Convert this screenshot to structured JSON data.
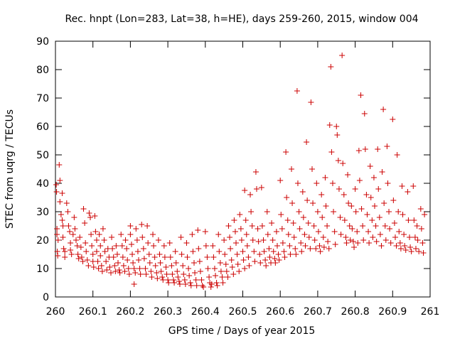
{
  "chart_data": {
    "type": "scatter",
    "title": "Rec. hnpt (Lon=283, Lat=38, h=HE), days 259-260, 2015, window 004",
    "xlabel": "GPS time / Days of year 2015",
    "ylabel": "STEC from uqrg / TECUs",
    "xlim": [
      260,
      261
    ],
    "ylim": [
      0,
      90
    ],
    "xticks": [
      "260",
      "260.1",
      "260.2",
      "260.3",
      "260.4",
      "260.5",
      "260.6",
      "260.7",
      "260.8",
      "260.9",
      "261"
    ],
    "yticks": [
      "0",
      "10",
      "20",
      "30",
      "40",
      "50",
      "60",
      "70",
      "80",
      "90"
    ],
    "grid": false,
    "legend": "none",
    "marker": "plus",
    "color": "#cc0000",
    "points": [
      [
        260.002,
        39.5
      ],
      [
        260.003,
        37
      ],
      [
        260.004,
        24
      ],
      [
        260.004,
        22
      ],
      [
        260.005,
        16
      ],
      [
        260.006,
        14.5
      ],
      [
        260.007,
        20
      ],
      [
        260.01,
        46.5
      ],
      [
        260.012,
        41
      ],
      [
        260.012,
        33.5
      ],
      [
        260.015,
        29
      ],
      [
        260.018,
        36.5
      ],
      [
        260.018,
        27
      ],
      [
        260.02,
        25
      ],
      [
        260.02,
        21
      ],
      [
        260.022,
        17
      ],
      [
        260.025,
        16
      ],
      [
        260.025,
        14
      ],
      [
        260.03,
        33
      ],
      [
        260.033,
        30
      ],
      [
        260.035,
        25
      ],
      [
        260.038,
        23
      ],
      [
        260.04,
        19
      ],
      [
        260.04,
        16.5
      ],
      [
        260.043,
        15
      ],
      [
        260.047,
        22
      ],
      [
        260.05,
        28
      ],
      [
        260.052,
        24
      ],
      [
        260.055,
        20
      ],
      [
        260.058,
        18
      ],
      [
        260.06,
        15
      ],
      [
        260.062,
        13.5
      ],
      [
        260.065,
        21
      ],
      [
        260.068,
        17.5
      ],
      [
        260.07,
        14
      ],
      [
        260.073,
        12.5
      ],
      [
        260.075,
        31
      ],
      [
        260.078,
        26
      ],
      [
        260.08,
        19
      ],
      [
        260.082,
        16
      ],
      [
        260.085,
        13
      ],
      [
        260.088,
        11
      ],
      [
        260.09,
        29.5
      ],
      [
        260.093,
        28
      ],
      [
        260.095,
        22
      ],
      [
        260.097,
        18
      ],
      [
        260.1,
        15
      ],
      [
        260.1,
        12.5
      ],
      [
        260.102,
        10.5
      ],
      [
        260.105,
        28.5
      ],
      [
        260.107,
        23
      ],
      [
        260.11,
        20
      ],
      [
        260.11,
        16
      ],
      [
        260.113,
        12.5
      ],
      [
        260.115,
        10
      ],
      [
        260.117,
        22
      ],
      [
        260.12,
        18
      ],
      [
        260.12,
        14.5
      ],
      [
        260.123,
        11
      ],
      [
        260.125,
        9
      ],
      [
        260.127,
        24
      ],
      [
        260.13,
        20
      ],
      [
        260.132,
        16
      ],
      [
        260.135,
        12.5
      ],
      [
        260.137,
        9.5
      ],
      [
        260.14,
        17
      ],
      [
        260.143,
        14
      ],
      [
        260.145,
        10.5
      ],
      [
        260.148,
        8.5
      ],
      [
        260.15,
        21
      ],
      [
        260.152,
        17
      ],
      [
        260.155,
        14
      ],
      [
        260.158,
        11
      ],
      [
        260.16,
        9
      ],
      [
        260.162,
        18
      ],
      [
        260.165,
        15
      ],
      [
        260.167,
        12
      ],
      [
        260.17,
        9.5
      ],
      [
        260.172,
        8.5
      ],
      [
        260.175,
        22
      ],
      [
        260.178,
        18
      ],
      [
        260.18,
        14
      ],
      [
        260.182,
        11
      ],
      [
        260.185,
        9
      ],
      [
        260.187,
        20
      ],
      [
        260.19,
        17
      ],
      [
        260.192,
        13
      ],
      [
        260.195,
        10
      ],
      [
        260.197,
        8
      ],
      [
        260.2,
        25
      ],
      [
        260.2,
        22
      ],
      [
        260.203,
        18.5
      ],
      [
        260.205,
        15
      ],
      [
        260.207,
        12
      ],
      [
        260.21,
        10
      ],
      [
        260.21,
        4.5
      ],
      [
        260.213,
        8.5
      ],
      [
        260.215,
        24
      ],
      [
        260.218,
        20
      ],
      [
        260.22,
        16
      ],
      [
        260.222,
        13
      ],
      [
        260.225,
        10
      ],
      [
        260.227,
        8
      ],
      [
        260.23,
        25.5
      ],
      [
        260.232,
        21
      ],
      [
        260.235,
        17
      ],
      [
        260.237,
        13.5
      ],
      [
        260.24,
        10
      ],
      [
        260.242,
        8
      ],
      [
        260.245,
        25
      ],
      [
        260.247,
        19
      ],
      [
        260.25,
        15
      ],
      [
        260.252,
        12
      ],
      [
        260.255,
        9
      ],
      [
        260.257,
        7
      ],
      [
        260.26,
        22
      ],
      [
        260.262,
        18
      ],
      [
        260.265,
        14
      ],
      [
        260.267,
        11
      ],
      [
        260.27,
        8.5
      ],
      [
        260.272,
        6.5
      ],
      [
        260.275,
        20
      ],
      [
        260.278,
        15
      ],
      [
        260.28,
        12
      ],
      [
        260.282,
        9
      ],
      [
        260.285,
        7
      ],
      [
        260.287,
        6
      ],
      [
        260.29,
        18
      ],
      [
        260.292,
        14
      ],
      [
        260.295,
        10.5
      ],
      [
        260.297,
        8
      ],
      [
        260.3,
        6
      ],
      [
        260.302,
        5
      ],
      [
        260.305,
        19
      ],
      [
        260.307,
        14
      ],
      [
        260.31,
        11
      ],
      [
        260.312,
        8
      ],
      [
        260.315,
        6
      ],
      [
        260.317,
        5
      ],
      [
        260.32,
        16
      ],
      [
        260.322,
        12
      ],
      [
        260.325,
        9
      ],
      [
        260.327,
        7
      ],
      [
        260.33,
        5.5
      ],
      [
        260.332,
        4.5
      ],
      [
        260.335,
        21
      ],
      [
        260.337,
        15
      ],
      [
        260.34,
        11
      ],
      [
        260.342,
        8
      ],
      [
        260.345,
        6
      ],
      [
        260.347,
        4.5
      ],
      [
        260.35,
        19
      ],
      [
        260.352,
        14
      ],
      [
        260.355,
        10
      ],
      [
        260.357,
        7.5
      ],
      [
        260.36,
        5
      ],
      [
        260.362,
        4
      ],
      [
        260.365,
        22
      ],
      [
        260.367,
        16
      ],
      [
        260.37,
        12
      ],
      [
        260.372,
        8.5
      ],
      [
        260.375,
        6
      ],
      [
        260.377,
        4
      ],
      [
        260.38,
        23.5
      ],
      [
        260.382,
        17
      ],
      [
        260.385,
        12.5
      ],
      [
        260.387,
        9
      ],
      [
        260.39,
        6
      ],
      [
        260.392,
        4
      ],
      [
        260.395,
        3.5
      ],
      [
        260.4,
        23
      ],
      [
        260.402,
        18
      ],
      [
        260.405,
        14
      ],
      [
        260.407,
        10
      ],
      [
        260.41,
        7
      ],
      [
        260.412,
        5
      ],
      [
        260.415,
        3.5
      ],
      [
        260.417,
        4.5
      ],
      [
        260.42,
        18
      ],
      [
        260.422,
        14
      ],
      [
        260.425,
        10
      ],
      [
        260.427,
        7.5
      ],
      [
        260.43,
        5
      ],
      [
        260.432,
        4
      ],
      [
        260.435,
        22
      ],
      [
        260.437,
        16
      ],
      [
        260.44,
        12
      ],
      [
        260.442,
        9
      ],
      [
        260.445,
        7
      ],
      [
        260.447,
        5
      ],
      [
        260.45,
        20
      ],
      [
        260.452,
        15
      ],
      [
        260.455,
        11.5
      ],
      [
        260.457,
        9
      ],
      [
        260.46,
        7
      ],
      [
        260.462,
        25
      ],
      [
        260.465,
        21
      ],
      [
        260.467,
        17
      ],
      [
        260.47,
        13
      ],
      [
        260.472,
        10.5
      ],
      [
        260.475,
        8
      ],
      [
        260.477,
        27
      ],
      [
        260.48,
        23
      ],
      [
        260.482,
        19
      ],
      [
        260.485,
        15
      ],
      [
        260.487,
        11.5
      ],
      [
        260.49,
        9
      ],
      [
        260.492,
        29
      ],
      [
        260.495,
        24
      ],
      [
        260.497,
        20
      ],
      [
        260.5,
        16
      ],
      [
        260.502,
        13
      ],
      [
        260.505,
        10
      ],
      [
        260.505,
        37.5
      ],
      [
        260.508,
        27
      ],
      [
        260.51,
        22
      ],
      [
        260.512,
        18
      ],
      [
        260.515,
        14
      ],
      [
        260.517,
        11
      ],
      [
        260.52,
        36
      ],
      [
        260.522,
        30
      ],
      [
        260.525,
        25
      ],
      [
        260.527,
        20
      ],
      [
        260.53,
        16
      ],
      [
        260.532,
        12.5
      ],
      [
        260.535,
        44
      ],
      [
        260.537,
        38
      ],
      [
        260.54,
        24
      ],
      [
        260.542,
        19.5
      ],
      [
        260.545,
        15
      ],
      [
        260.547,
        12
      ],
      [
        260.55,
        38.5
      ],
      [
        260.552,
        25
      ],
      [
        260.555,
        20
      ],
      [
        260.557,
        16
      ],
      [
        260.56,
        13
      ],
      [
        260.562,
        11
      ],
      [
        260.565,
        30
      ],
      [
        260.567,
        22
      ],
      [
        260.57,
        17
      ],
      [
        260.572,
        14
      ],
      [
        260.575,
        12
      ],
      [
        260.577,
        26
      ],
      [
        260.58,
        20
      ],
      [
        260.582,
        16
      ],
      [
        260.585,
        13.5
      ],
      [
        260.587,
        12
      ],
      [
        260.59,
        23
      ],
      [
        260.592,
        18
      ],
      [
        260.595,
        15
      ],
      [
        260.597,
        13
      ],
      [
        260.6,
        41
      ],
      [
        260.602,
        29
      ],
      [
        260.605,
        24
      ],
      [
        260.607,
        19
      ],
      [
        260.61,
        16
      ],
      [
        260.612,
        14
      ],
      [
        260.615,
        51
      ],
      [
        260.617,
        35
      ],
      [
        260.62,
        27
      ],
      [
        260.622,
        22
      ],
      [
        260.625,
        18
      ],
      [
        260.627,
        15
      ],
      [
        260.63,
        45
      ],
      [
        260.632,
        33
      ],
      [
        260.635,
        26
      ],
      [
        260.637,
        21
      ],
      [
        260.64,
        17
      ],
      [
        260.642,
        15
      ],
      [
        260.645,
        72.5
      ],
      [
        260.647,
        40
      ],
      [
        260.65,
        30
      ],
      [
        260.652,
        24
      ],
      [
        260.655,
        19
      ],
      [
        260.657,
        16
      ],
      [
        260.66,
        37
      ],
      [
        260.662,
        28
      ],
      [
        260.665,
        22
      ],
      [
        260.667,
        18
      ],
      [
        260.67,
        54.5
      ],
      [
        260.672,
        34
      ],
      [
        260.675,
        26
      ],
      [
        260.677,
        21
      ],
      [
        260.68,
        17
      ],
      [
        260.682,
        68.5
      ],
      [
        260.685,
        45
      ],
      [
        260.687,
        33
      ],
      [
        260.69,
        25
      ],
      [
        260.692,
        20
      ],
      [
        260.695,
        17
      ],
      [
        260.697,
        40
      ],
      [
        260.7,
        30
      ],
      [
        260.702,
        23
      ],
      [
        260.705,
        18
      ],
      [
        260.707,
        16
      ],
      [
        260.71,
        36
      ],
      [
        260.712,
        28
      ],
      [
        260.715,
        21
      ],
      [
        260.717,
        17.5
      ],
      [
        260.72,
        42
      ],
      [
        260.722,
        32
      ],
      [
        260.725,
        25
      ],
      [
        260.727,
        19.5
      ],
      [
        260.73,
        17
      ],
      [
        260.732,
        60.5
      ],
      [
        260.735,
        81
      ],
      [
        260.737,
        51
      ],
      [
        260.74,
        40
      ],
      [
        260.742,
        30
      ],
      [
        260.745,
        23
      ],
      [
        260.747,
        18.5
      ],
      [
        260.75,
        60
      ],
      [
        260.752,
        57
      ],
      [
        260.755,
        48
      ],
      [
        260.757,
        38
      ],
      [
        260.76,
        28
      ],
      [
        260.762,
        22
      ],
      [
        260.765,
        85
      ],
      [
        260.767,
        47
      ],
      [
        260.77,
        36
      ],
      [
        260.772,
        27
      ],
      [
        260.775,
        21
      ],
      [
        260.777,
        19
      ],
      [
        260.78,
        43
      ],
      [
        260.782,
        33
      ],
      [
        260.785,
        25
      ],
      [
        260.787,
        20
      ],
      [
        260.79,
        32
      ],
      [
        260.792,
        24
      ],
      [
        260.795,
        19.5
      ],
      [
        260.797,
        17.5
      ],
      [
        260.8,
        38
      ],
      [
        260.802,
        30
      ],
      [
        260.805,
        23
      ],
      [
        260.807,
        19
      ],
      [
        260.81,
        51.5
      ],
      [
        260.812,
        41
      ],
      [
        260.815,
        71
      ],
      [
        260.817,
        31
      ],
      [
        260.82,
        25
      ],
      [
        260.822,
        20
      ],
      [
        260.825,
        64.5
      ],
      [
        260.827,
        52
      ],
      [
        260.83,
        36
      ],
      [
        260.832,
        29
      ],
      [
        260.835,
        23
      ],
      [
        260.837,
        19
      ],
      [
        260.84,
        46
      ],
      [
        260.842,
        35
      ],
      [
        260.845,
        27
      ],
      [
        260.847,
        21
      ],
      [
        260.85,
        42
      ],
      [
        260.852,
        32
      ],
      [
        260.855,
        25
      ],
      [
        260.857,
        19.5
      ],
      [
        260.86,
        52
      ],
      [
        260.862,
        38
      ],
      [
        260.865,
        28
      ],
      [
        260.867,
        22
      ],
      [
        260.87,
        18
      ],
      [
        260.872,
        44
      ],
      [
        260.875,
        66
      ],
      [
        260.877,
        33
      ],
      [
        260.88,
        25
      ],
      [
        260.882,
        20
      ],
      [
        260.885,
        53
      ],
      [
        260.887,
        40
      ],
      [
        260.89,
        30
      ],
      [
        260.892,
        24
      ],
      [
        260.895,
        19
      ],
      [
        260.9,
        62.5
      ],
      [
        260.902,
        34
      ],
      [
        260.905,
        26
      ],
      [
        260.907,
        21
      ],
      [
        260.91,
        18
      ],
      [
        260.912,
        50
      ],
      [
        260.915,
        30
      ],
      [
        260.917,
        23
      ],
      [
        260.92,
        19
      ],
      [
        260.922,
        17
      ],
      [
        260.925,
        39
      ],
      [
        260.927,
        29
      ],
      [
        260.93,
        22
      ],
      [
        260.932,
        18
      ],
      [
        260.935,
        16.5
      ],
      [
        260.94,
        37
      ],
      [
        260.942,
        27
      ],
      [
        260.945,
        21
      ],
      [
        260.947,
        17.5
      ],
      [
        260.95,
        16
      ],
      [
        260.955,
        39
      ],
      [
        260.957,
        27
      ],
      [
        260.96,
        21
      ],
      [
        260.962,
        17
      ],
      [
        260.965,
        25
      ],
      [
        260.967,
        20
      ],
      [
        260.97,
        16
      ],
      [
        260.975,
        31
      ],
      [
        260.977,
        24
      ],
      [
        260.98,
        19
      ],
      [
        260.982,
        15.5
      ],
      [
        260.985,
        29
      ]
    ]
  }
}
